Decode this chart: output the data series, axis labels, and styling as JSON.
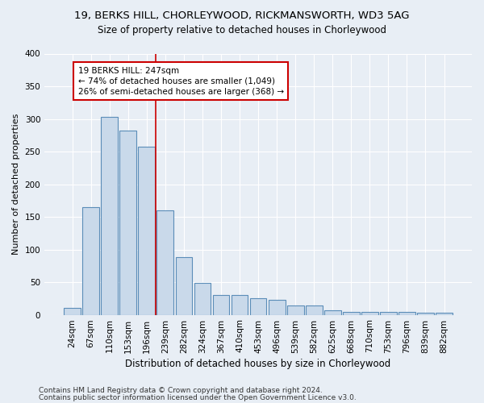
{
  "title1": "19, BERKS HILL, CHORLEYWOOD, RICKMANSWORTH, WD3 5AG",
  "title2": "Size of property relative to detached houses in Chorleywood",
  "xlabel": "Distribution of detached houses by size in Chorleywood",
  "ylabel": "Number of detached properties",
  "categories": [
    "24sqm",
    "67sqm",
    "110sqm",
    "153sqm",
    "196sqm",
    "239sqm",
    "282sqm",
    "324sqm",
    "367sqm",
    "410sqm",
    "453sqm",
    "496sqm",
    "539sqm",
    "582sqm",
    "625sqm",
    "668sqm",
    "710sqm",
    "753sqm",
    "796sqm",
    "839sqm",
    "882sqm"
  ],
  "values": [
    10,
    165,
    303,
    282,
    258,
    160,
    88,
    49,
    30,
    30,
    26,
    23,
    14,
    14,
    7,
    5,
    4,
    4,
    4,
    3,
    3
  ],
  "bar_color": "#c9d9ea",
  "bar_edge_color": "#5b8db8",
  "annotation_text_line1": "19 BERKS HILL: 247sqm",
  "annotation_text_line2": "← 74% of detached houses are smaller (1,049)",
  "annotation_text_line3": "26% of semi-detached houses are larger (368) →",
  "annotation_box_color": "white",
  "annotation_box_edge_color": "#cc0000",
  "vline_color": "#cc0000",
  "vline_x": 4.5,
  "ylim": [
    0,
    400
  ],
  "yticks": [
    0,
    50,
    100,
    150,
    200,
    250,
    300,
    350,
    400
  ],
  "footer1": "Contains HM Land Registry data © Crown copyright and database right 2024.",
  "footer2": "Contains public sector information licensed under the Open Government Licence v3.0.",
  "bg_color": "#e8eef5",
  "plot_bg_color": "#e8eef5",
  "title1_fontsize": 9.5,
  "title2_fontsize": 8.5,
  "xlabel_fontsize": 8.5,
  "ylabel_fontsize": 8,
  "tick_fontsize": 7.5,
  "annotation_fontsize": 7.5,
  "footer_fontsize": 6.5
}
